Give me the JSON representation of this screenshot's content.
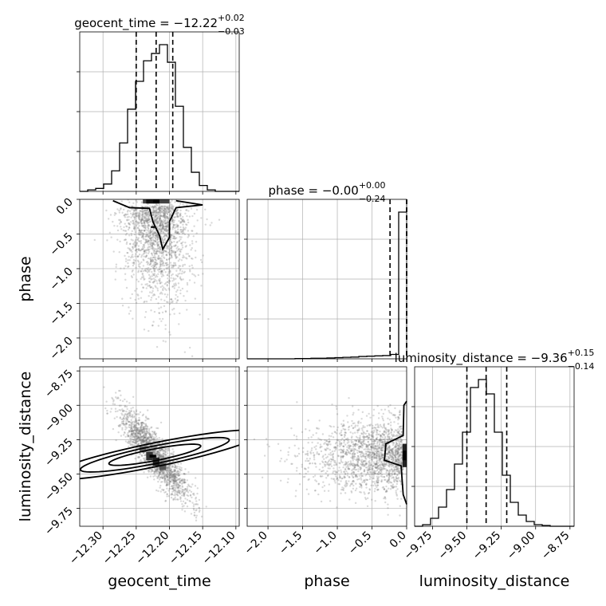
{
  "chart_data": {
    "type": "corner",
    "parameters": [
      "geocent_time",
      "phase",
      "luminosity_distance"
    ],
    "axis_labels": {
      "geocent_time": "geocent_time",
      "phase": "phase",
      "luminosity_distance": "luminosity_distance"
    },
    "ranges": {
      "geocent_time": [
        -12.335,
        -12.095
      ],
      "phase": [
        -2.3,
        0.0
      ],
      "luminosity_distance": [
        -9.88,
        -8.72
      ]
    },
    "ticks": {
      "geocent_time": {
        "values": [
          -12.3,
          -12.25,
          -12.2,
          -12.15,
          -12.1
        ],
        "labels": [
          "−12.30",
          "−12.25",
          "−12.20",
          "−12.15",
          "−12.10"
        ]
      },
      "phase": {
        "values": [
          -2.0,
          -1.5,
          -1.0,
          -0.5,
          0.0
        ],
        "labels": [
          "−2.0",
          "−1.5",
          "−1.0",
          "−0.5",
          "0.0"
        ]
      },
      "luminosity_distance": {
        "values": [
          -9.75,
          -9.5,
          -9.25,
          -9.0,
          -8.75
        ],
        "labels": [
          "−9.75",
          "−9.50",
          "−9.25",
          "−9.00",
          "−8.75"
        ]
      }
    },
    "titles": {
      "geocent_time": {
        "prefix": "geocent_time = −12.22",
        "sup": "+0.02",
        "sub": "−0.03"
      },
      "phase": {
        "prefix": "phase = −0.00",
        "sup": "+0.00",
        "sub": "−0.24"
      },
      "luminosity_distance": {
        "prefix": "luminosity_distance = −9.36",
        "sup": "+0.15",
        "sub": "−0.14"
      }
    },
    "quantiles": {
      "geocent_time": [
        -12.25,
        -12.22,
        -12.195
      ],
      "phase": [
        -0.24,
        0.0,
        0.0
      ],
      "luminosity_distance": [
        -9.5,
        -9.36,
        -9.21
      ]
    },
    "histograms": {
      "geocent_time": {
        "edges": [
          -12.335,
          -12.323,
          -12.311,
          -12.299,
          -12.287,
          -12.275,
          -12.263,
          -12.251,
          -12.239,
          -12.227,
          -12.215,
          -12.203,
          -12.191,
          -12.179,
          -12.167,
          -12.155,
          -12.143,
          -12.131,
          -12.119,
          -12.107,
          -12.095
        ],
        "counts": [
          0,
          0.01,
          0.02,
          0.05,
          0.14,
          0.33,
          0.56,
          0.75,
          0.89,
          0.94,
          1.0,
          0.88,
          0.58,
          0.3,
          0.13,
          0.04,
          0.01,
          0,
          0,
          0
        ]
      },
      "phase": {
        "edges": [
          -2.3,
          -2.185,
          -2.07,
          -1.955,
          -1.84,
          -1.725,
          -1.61,
          -1.495,
          -1.38,
          -1.265,
          -1.15,
          -1.035,
          -0.92,
          -0.805,
          -0.69,
          -0.575,
          -0.46,
          -0.345,
          -0.23,
          -0.115,
          0.0
        ],
        "counts": [
          0,
          0,
          0,
          0,
          0,
          0,
          0.002,
          0.002,
          0.004,
          0.004,
          0.006,
          0.008,
          0.01,
          0.012,
          0.016,
          0.018,
          0.02,
          0.022,
          0.03,
          1.0
        ]
      },
      "luminosity_distance": {
        "edges": [
          -9.88,
          -9.822,
          -9.764,
          -9.706,
          -9.648,
          -9.59,
          -9.532,
          -9.474,
          -9.416,
          -9.358,
          -9.3,
          -9.242,
          -9.184,
          -9.126,
          -9.068,
          -9.01,
          -8.952,
          -8.894,
          -8.836,
          -8.778,
          -8.72
        ],
        "counts": [
          0,
          0.01,
          0.05,
          0.12,
          0.23,
          0.39,
          0.59,
          0.87,
          0.92,
          0.83,
          0.59,
          0.32,
          0.15,
          0.07,
          0.03,
          0.01,
          0.005,
          0,
          0,
          0
        ]
      }
    },
    "scatter_samples": 1800,
    "grid": true
  }
}
